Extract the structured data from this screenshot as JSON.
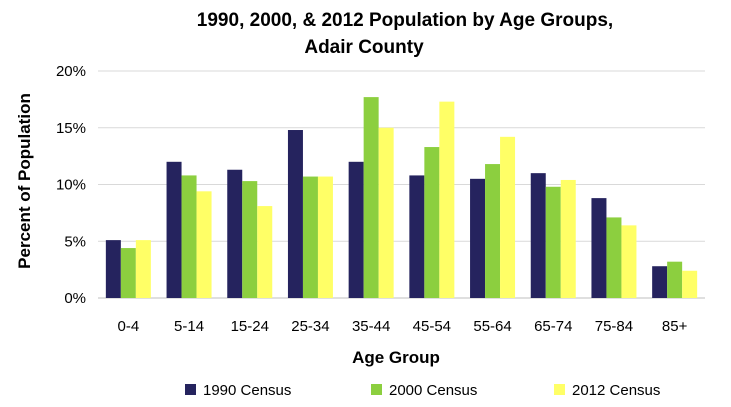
{
  "chart_data": {
    "type": "bar",
    "title_line1": "1990, 2000, & 2012 Population by Age Groups,",
    "title_line2": "Adair County",
    "xlabel": "Age Group",
    "ylabel": "Percent of Population",
    "ylim": [
      0,
      20
    ],
    "yticks": [
      "0%",
      "5%",
      "10%",
      "15%",
      "20%"
    ],
    "grid": true,
    "legend_position": "bottom",
    "categories": [
      "0-4",
      "5-14",
      "15-24",
      "25-34",
      "35-44",
      "45-54",
      "55-64",
      "65-74",
      "75-84",
      "85+"
    ],
    "series": [
      {
        "name": "1990 Census",
        "color": "#25235e",
        "values": [
          5.1,
          12.0,
          11.3,
          14.8,
          12.0,
          10.8,
          10.5,
          11.0,
          8.8,
          2.8
        ]
      },
      {
        "name": "2000 Census",
        "color": "#8ccf3f",
        "values": [
          4.4,
          10.8,
          10.3,
          10.7,
          17.7,
          13.3,
          11.8,
          9.8,
          7.1,
          3.2
        ]
      },
      {
        "name": "2012 Census",
        "color": "#ffff66",
        "values": [
          5.1,
          9.4,
          8.1,
          10.7,
          15.0,
          17.3,
          14.2,
          10.4,
          6.4,
          2.4
        ]
      }
    ]
  }
}
